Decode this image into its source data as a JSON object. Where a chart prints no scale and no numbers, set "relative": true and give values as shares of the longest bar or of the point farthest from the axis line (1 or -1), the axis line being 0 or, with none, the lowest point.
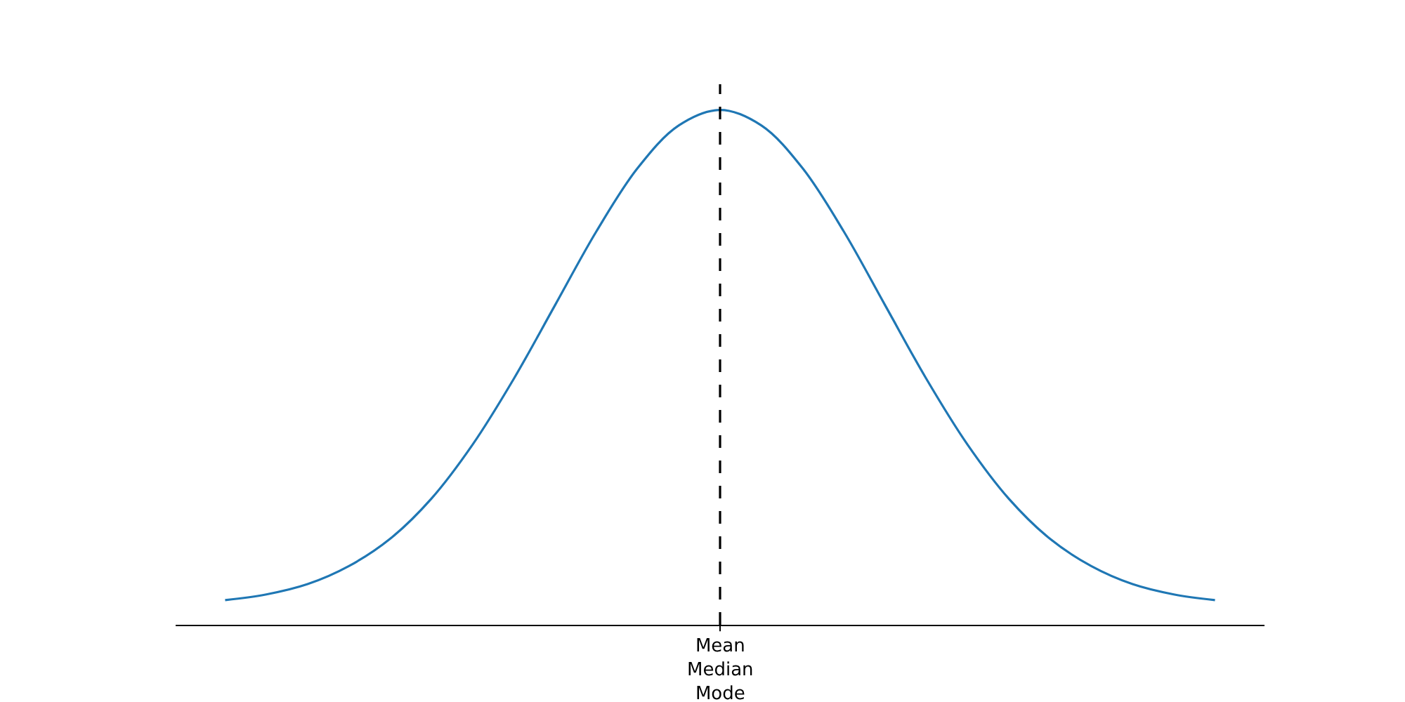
{
  "chart_data": {
    "type": "line",
    "relative": true,
    "categories": [
      null,
      null,
      null,
      null,
      null,
      null,
      null,
      null,
      null,
      null,
      null,
      null,
      null,
      null,
      null,
      null,
      null,
      null,
      null,
      null,
      null,
      null,
      null,
      null,
      null
    ],
    "annotations": [
      "Mean\nMedian\nMode"
    ],
    "series": [
      {
        "color": "#1f77b4",
        "values": [
          0.048,
          0.059,
          0.079,
          0.114,
          0.167,
          0.245,
          0.35,
          0.478,
          0.621,
          0.764,
          0.887,
          0.97,
          1,
          0.97,
          0.887,
          0.764,
          0.621,
          0.478,
          0.35,
          0.245,
          0.167,
          0.114,
          0.079,
          0.059,
          0.048
        ]
      }
    ]
  }
}
